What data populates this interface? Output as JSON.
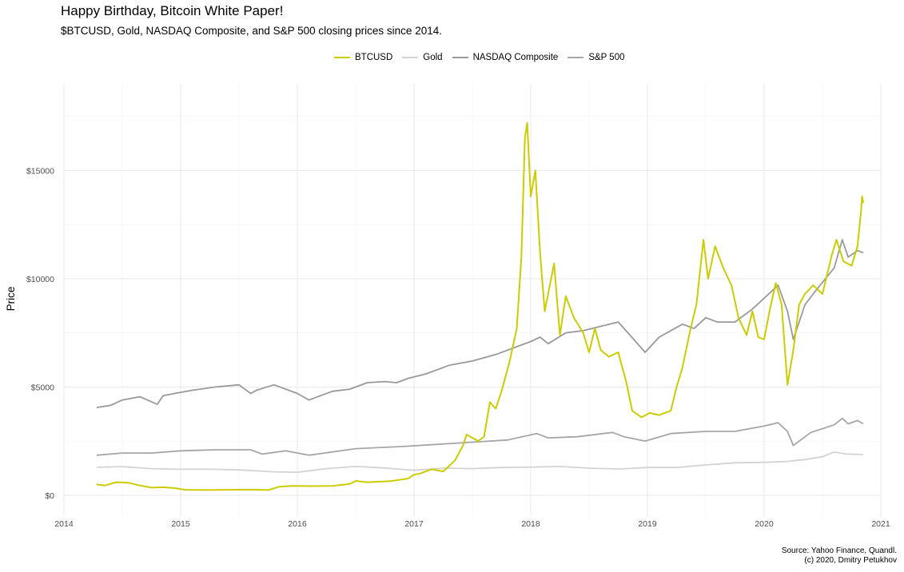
{
  "chart_data": {
    "type": "line",
    "title": "Happy Birthday, Bitcoin White Paper!",
    "subtitle": "$BTCUSD, Gold, NASDAQ Composite, and S&P 500 closing prices since 2014.",
    "ylabel": "Price",
    "xlabel": "",
    "xlim": [
      2014.0,
      2021.0
    ],
    "ylim": [
      -1000,
      19000
    ],
    "x_ticks": [
      2014,
      2015,
      2016,
      2017,
      2018,
      2019,
      2020,
      2021
    ],
    "x_tick_labels": [
      "2014",
      "2015",
      "2016",
      "2017",
      "2018",
      "2019",
      "2020",
      "2021"
    ],
    "y_ticks": [
      0,
      5000,
      10000,
      15000
    ],
    "y_tick_labels": [
      "$0",
      "$5000",
      "$10000",
      "$15000"
    ],
    "grid": true,
    "legend_position": "top",
    "series": [
      {
        "name": "BTCUSD",
        "color": "#cccc00",
        "x": [
          2014.28,
          2014.35,
          2014.45,
          2014.55,
          2014.65,
          2014.75,
          2014.85,
          2014.95,
          2015.04,
          2015.2,
          2015.4,
          2015.6,
          2015.75,
          2015.85,
          2015.95,
          2016.1,
          2016.3,
          2016.45,
          2016.5,
          2016.6,
          2016.8,
          2016.95,
          2017.0,
          2017.05,
          2017.15,
          2017.25,
          2017.35,
          2017.42,
          2017.45,
          2017.55,
          2017.6,
          2017.65,
          2017.7,
          2017.75,
          2017.82,
          2017.88,
          2017.92,
          2017.95,
          2017.97,
          2018.0,
          2018.04,
          2018.08,
          2018.12,
          2018.2,
          2018.25,
          2018.3,
          2018.37,
          2018.45,
          2018.5,
          2018.55,
          2018.6,
          2018.67,
          2018.75,
          2018.82,
          2018.87,
          2018.95,
          2019.02,
          2019.1,
          2019.2,
          2019.25,
          2019.3,
          2019.37,
          2019.42,
          2019.48,
          2019.52,
          2019.58,
          2019.65,
          2019.72,
          2019.78,
          2019.85,
          2019.9,
          2019.95,
          2020.0,
          2020.05,
          2020.1,
          2020.15,
          2020.2,
          2020.25,
          2020.3,
          2020.35,
          2020.42,
          2020.5,
          2020.58,
          2020.62,
          2020.68,
          2020.75,
          2020.8,
          2020.83,
          2020.84,
          2020.85
        ],
        "values": [
          500,
          450,
          600,
          580,
          450,
          350,
          370,
          330,
          250,
          240,
          250,
          260,
          240,
          400,
          430,
          420,
          430,
          520,
          660,
          600,
          650,
          770,
          950,
          1000,
          1200,
          1100,
          1600,
          2300,
          2800,
          2500,
          2700,
          4300,
          4000,
          4800,
          6200,
          7700,
          11000,
          16500,
          17200,
          13800,
          15000,
          11200,
          8500,
          10700,
          7400,
          9200,
          8200,
          7500,
          6600,
          7700,
          6700,
          6400,
          6600,
          5200,
          3900,
          3600,
          3800,
          3700,
          3900,
          5000,
          5900,
          7700,
          8800,
          11800,
          10000,
          11500,
          10500,
          9700,
          8200,
          7400,
          8500,
          7300,
          7200,
          8600,
          9800,
          8800,
          5100,
          6700,
          8800,
          9300,
          9700,
          9300,
          11100,
          11800,
          10800,
          10600,
          11500,
          13100,
          13800,
          13500
        ]
      },
      {
        "name": "Gold",
        "color": "#d3d3d3",
        "x": [
          2014.28,
          2014.5,
          2014.75,
          2015.0,
          2015.25,
          2015.5,
          2015.8,
          2016.0,
          2016.25,
          2016.5,
          2016.75,
          2017.0,
          2017.25,
          2017.5,
          2017.75,
          2018.0,
          2018.25,
          2018.5,
          2018.75,
          2019.0,
          2019.25,
          2019.5,
          2019.75,
          2020.0,
          2020.2,
          2020.35,
          2020.5,
          2020.6,
          2020.7,
          2020.85
        ],
        "values": [
          1290,
          1320,
          1230,
          1200,
          1200,
          1170,
          1080,
          1060,
          1230,
          1330,
          1260,
          1150,
          1250,
          1230,
          1280,
          1300,
          1330,
          1250,
          1210,
          1280,
          1280,
          1400,
          1500,
          1520,
          1560,
          1650,
          1780,
          2000,
          1900,
          1880
        ]
      },
      {
        "name": "NASDAQ Composite",
        "color": "#999999",
        "x": [
          2014.28,
          2014.4,
          2014.5,
          2014.65,
          2014.8,
          2014.85,
          2014.95,
          2015.1,
          2015.3,
          2015.5,
          2015.6,
          2015.65,
          2015.8,
          2016.0,
          2016.1,
          2016.2,
          2016.3,
          2016.45,
          2016.5,
          2016.6,
          2016.75,
          2016.85,
          2016.95,
          2017.1,
          2017.3,
          2017.5,
          2017.7,
          2017.9,
          2018.0,
          2018.08,
          2018.15,
          2018.3,
          2018.45,
          2018.6,
          2018.75,
          2018.85,
          2018.98,
          2019.1,
          2019.3,
          2019.4,
          2019.5,
          2019.6,
          2019.75,
          2019.9,
          2020.0,
          2020.12,
          2020.2,
          2020.25,
          2020.35,
          2020.45,
          2020.6,
          2020.67,
          2020.72,
          2020.8,
          2020.85
        ],
        "values": [
          4050,
          4150,
          4400,
          4550,
          4200,
          4600,
          4700,
          4850,
          5000,
          5100,
          4700,
          4850,
          5100,
          4700,
          4400,
          4600,
          4800,
          4900,
          5000,
          5200,
          5250,
          5200,
          5400,
          5600,
          6000,
          6200,
          6500,
          6900,
          7100,
          7300,
          7000,
          7500,
          7600,
          7800,
          8000,
          7400,
          6600,
          7300,
          7900,
          7700,
          8200,
          8000,
          8000,
          8600,
          9100,
          9700,
          8500,
          7200,
          8800,
          9500,
          10500,
          11800,
          11000,
          11300,
          11200
        ]
      },
      {
        "name": "S&P 500",
        "color": "#a6a6a6",
        "x": [
          2014.28,
          2014.5,
          2014.75,
          2015.0,
          2015.3,
          2015.6,
          2015.7,
          2015.9,
          2016.1,
          2016.5,
          2016.9,
          2017.2,
          2017.5,
          2017.8,
          2018.05,
          2018.15,
          2018.4,
          2018.7,
          2018.8,
          2018.98,
          2019.2,
          2019.5,
          2019.75,
          2020.0,
          2020.12,
          2020.2,
          2020.25,
          2020.4,
          2020.6,
          2020.67,
          2020.72,
          2020.8,
          2020.85
        ],
        "values": [
          1850,
          1950,
          1950,
          2050,
          2100,
          2100,
          1900,
          2050,
          1850,
          2150,
          2250,
          2350,
          2450,
          2550,
          2850,
          2650,
          2700,
          2900,
          2700,
          2500,
          2850,
          2950,
          2950,
          3200,
          3350,
          2950,
          2300,
          2900,
          3250,
          3550,
          3300,
          3450,
          3300
        ]
      }
    ],
    "caption_lines": [
      "Source: Yahoo Finance, Quandl.",
      "(c) 2020, Dmitry Petukhov"
    ]
  }
}
